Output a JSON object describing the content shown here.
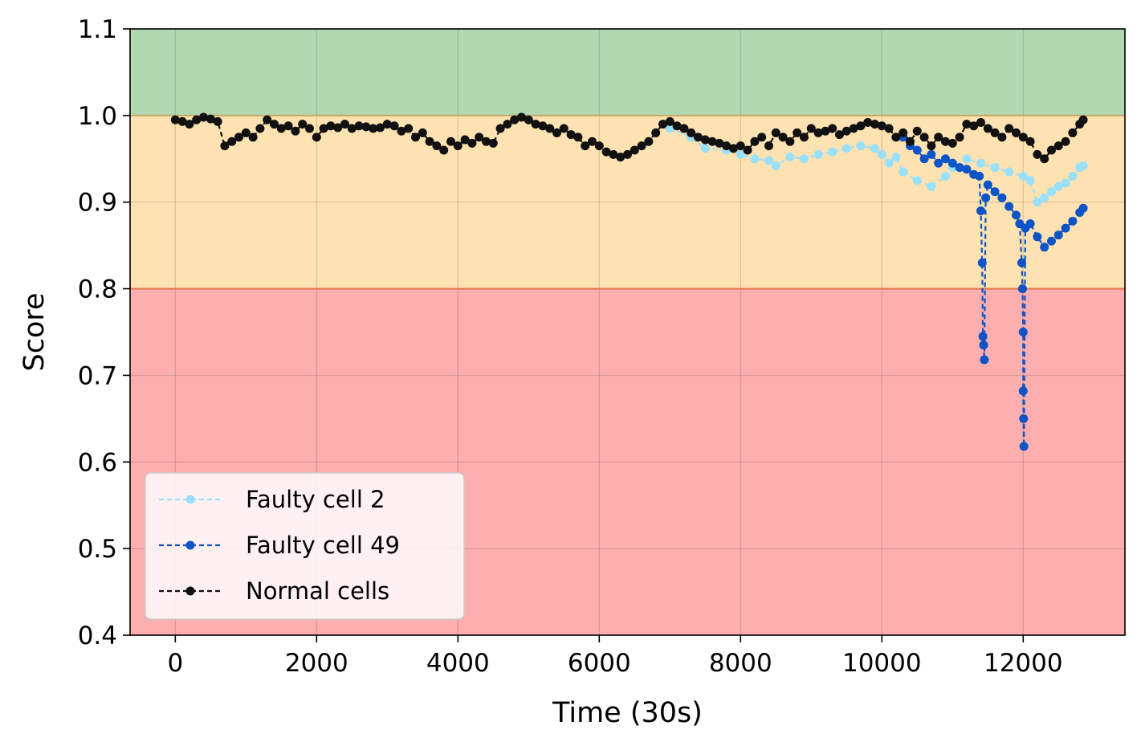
{
  "chart_data": {
    "type": "line",
    "title": "",
    "xlabel": "Time (30s)",
    "ylabel": "Score",
    "xlim": [
      -640,
      13440
    ],
    "ylim": [
      0.4,
      1.1
    ],
    "xticks": [
      0,
      2000,
      4000,
      6000,
      8000,
      10000,
      12000
    ],
    "xtick_labels": [
      "0",
      "2000",
      "4000",
      "6000",
      "8000",
      "10000",
      "12000"
    ],
    "yticks": [
      0.4,
      0.5,
      0.6,
      0.7,
      0.8,
      0.9,
      1.0,
      1.1
    ],
    "ytick_labels": [
      "0.4",
      "0.5",
      "0.6",
      "0.7",
      "0.8",
      "0.9",
      "1.0",
      "1.1"
    ],
    "grid": true,
    "legend_position": "lower-left",
    "bands": [
      {
        "from": 1.0,
        "to": 1.1,
        "color": "#b2d8b2"
      },
      {
        "from": 0.8,
        "to": 1.0,
        "color": "#fee2b1"
      },
      {
        "from": 0.4,
        "to": 0.8,
        "color": "#fdafaf"
      }
    ],
    "threshold_lines": [
      {
        "y": 1.0,
        "color": "#c9a960"
      },
      {
        "y": 0.8,
        "color": "#e8744a"
      }
    ],
    "series": [
      {
        "name": "Faulty cell 2",
        "color": "#99e0fb",
        "points": [
          [
            7000,
            0.985
          ],
          [
            7300,
            0.975
          ],
          [
            7500,
            0.962
          ],
          [
            7800,
            0.96
          ],
          [
            8000,
            0.955
          ],
          [
            8200,
            0.95
          ],
          [
            8400,
            0.948
          ],
          [
            8500,
            0.942
          ],
          [
            8700,
            0.952
          ],
          [
            8900,
            0.95
          ],
          [
            9100,
            0.955
          ],
          [
            9300,
            0.958
          ],
          [
            9500,
            0.962
          ],
          [
            9700,
            0.965
          ],
          [
            9900,
            0.962
          ],
          [
            10000,
            0.955
          ],
          [
            10100,
            0.945
          ],
          [
            10200,
            0.952
          ],
          [
            10300,
            0.935
          ],
          [
            10500,
            0.925
          ],
          [
            10700,
            0.918
          ],
          [
            10900,
            0.93
          ],
          [
            11000,
            0.94
          ],
          [
            11200,
            0.95
          ],
          [
            11400,
            0.945
          ],
          [
            11600,
            0.94
          ],
          [
            11800,
            0.935
          ],
          [
            12000,
            0.93
          ],
          [
            12100,
            0.925
          ],
          [
            12200,
            0.9
          ],
          [
            12300,
            0.905
          ],
          [
            12400,
            0.912
          ],
          [
            12500,
            0.918
          ],
          [
            12600,
            0.922
          ],
          [
            12700,
            0.93
          ],
          [
            12800,
            0.94
          ],
          [
            12850,
            0.942
          ]
        ]
      },
      {
        "name": "Faulty cell 49",
        "color": "#0d54c6",
        "points": [
          [
            10300,
            0.975
          ],
          [
            10400,
            0.965
          ],
          [
            10500,
            0.96
          ],
          [
            10600,
            0.95
          ],
          [
            10700,
            0.955
          ],
          [
            10800,
            0.945
          ],
          [
            10900,
            0.95
          ],
          [
            11000,
            0.945
          ],
          [
            11100,
            0.94
          ],
          [
            11200,
            0.938
          ],
          [
            11300,
            0.932
          ],
          [
            11380,
            0.93
          ],
          [
            11400,
            0.89
          ],
          [
            11420,
            0.83
          ],
          [
            11430,
            0.745
          ],
          [
            11440,
            0.735
          ],
          [
            11450,
            0.718
          ],
          [
            11470,
            0.905
          ],
          [
            11500,
            0.92
          ],
          [
            11600,
            0.912
          ],
          [
            11700,
            0.905
          ],
          [
            11800,
            0.895
          ],
          [
            11900,
            0.885
          ],
          [
            11950,
            0.875
          ],
          [
            11980,
            0.83
          ],
          [
            11990,
            0.8
          ],
          [
            12000,
            0.75
          ],
          [
            12000,
            0.682
          ],
          [
            12005,
            0.65
          ],
          [
            12010,
            0.618
          ],
          [
            12030,
            0.87
          ],
          [
            12100,
            0.875
          ],
          [
            12200,
            0.86
          ],
          [
            12300,
            0.848
          ],
          [
            12400,
            0.855
          ],
          [
            12500,
            0.862
          ],
          [
            12600,
            0.87
          ],
          [
            12700,
            0.878
          ],
          [
            12800,
            0.888
          ],
          [
            12850,
            0.893
          ]
        ]
      },
      {
        "name": "Normal cells",
        "color": "#111111",
        "points": [
          [
            0,
            0.995
          ],
          [
            100,
            0.993
          ],
          [
            200,
            0.99
          ],
          [
            300,
            0.995
          ],
          [
            400,
            0.998
          ],
          [
            500,
            0.996
          ],
          [
            600,
            0.993
          ],
          [
            700,
            0.965
          ],
          [
            800,
            0.97
          ],
          [
            900,
            0.975
          ],
          [
            1000,
            0.98
          ],
          [
            1100,
            0.975
          ],
          [
            1200,
            0.985
          ],
          [
            1300,
            0.995
          ],
          [
            1400,
            0.99
          ],
          [
            1500,
            0.985
          ],
          [
            1600,
            0.988
          ],
          [
            1700,
            0.982
          ],
          [
            1800,
            0.99
          ],
          [
            1900,
            0.985
          ],
          [
            2000,
            0.975
          ],
          [
            2100,
            0.985
          ],
          [
            2200,
            0.988
          ],
          [
            2300,
            0.986
          ],
          [
            2400,
            0.99
          ],
          [
            2500,
            0.985
          ],
          [
            2600,
            0.988
          ],
          [
            2700,
            0.987
          ],
          [
            2800,
            0.985
          ],
          [
            2900,
            0.986
          ],
          [
            3000,
            0.99
          ],
          [
            3100,
            0.988
          ],
          [
            3200,
            0.982
          ],
          [
            3300,
            0.985
          ],
          [
            3400,
            0.975
          ],
          [
            3500,
            0.98
          ],
          [
            3600,
            0.97
          ],
          [
            3700,
            0.965
          ],
          [
            3800,
            0.96
          ],
          [
            3900,
            0.97
          ],
          [
            4000,
            0.965
          ],
          [
            4100,
            0.972
          ],
          [
            4200,
            0.968
          ],
          [
            4300,
            0.975
          ],
          [
            4400,
            0.97
          ],
          [
            4500,
            0.968
          ],
          [
            4600,
            0.985
          ],
          [
            4700,
            0.99
          ],
          [
            4800,
            0.995
          ],
          [
            4900,
            0.998
          ],
          [
            5000,
            0.995
          ],
          [
            5100,
            0.99
          ],
          [
            5200,
            0.988
          ],
          [
            5300,
            0.985
          ],
          [
            5400,
            0.98
          ],
          [
            5500,
            0.985
          ],
          [
            5600,
            0.978
          ],
          [
            5700,
            0.975
          ],
          [
            5800,
            0.965
          ],
          [
            5900,
            0.97
          ],
          [
            6000,
            0.965
          ],
          [
            6100,
            0.958
          ],
          [
            6200,
            0.955
          ],
          [
            6300,
            0.952
          ],
          [
            6400,
            0.955
          ],
          [
            6500,
            0.96
          ],
          [
            6600,
            0.965
          ],
          [
            6700,
            0.97
          ],
          [
            6800,
            0.98
          ],
          [
            6900,
            0.99
          ],
          [
            7000,
            0.993
          ],
          [
            7100,
            0.988
          ],
          [
            7200,
            0.985
          ],
          [
            7300,
            0.98
          ],
          [
            7400,
            0.975
          ],
          [
            7500,
            0.972
          ],
          [
            7600,
            0.97
          ],
          [
            7700,
            0.968
          ],
          [
            7800,
            0.965
          ],
          [
            7900,
            0.962
          ],
          [
            8000,
            0.965
          ],
          [
            8100,
            0.96
          ],
          [
            8200,
            0.97
          ],
          [
            8300,
            0.975
          ],
          [
            8400,
            0.965
          ],
          [
            8500,
            0.98
          ],
          [
            8600,
            0.975
          ],
          [
            8700,
            0.97
          ],
          [
            8800,
            0.98
          ],
          [
            8900,
            0.975
          ],
          [
            9000,
            0.985
          ],
          [
            9100,
            0.98
          ],
          [
            9200,
            0.982
          ],
          [
            9300,
            0.985
          ],
          [
            9400,
            0.978
          ],
          [
            9500,
            0.982
          ],
          [
            9600,
            0.985
          ],
          [
            9700,
            0.988
          ],
          [
            9800,
            0.992
          ],
          [
            9900,
            0.99
          ],
          [
            10000,
            0.988
          ],
          [
            10100,
            0.985
          ],
          [
            10200,
            0.975
          ],
          [
            10300,
            0.98
          ],
          [
            10400,
            0.97
          ],
          [
            10500,
            0.982
          ],
          [
            10600,
            0.975
          ],
          [
            10700,
            0.965
          ],
          [
            10800,
            0.975
          ],
          [
            10900,
            0.97
          ],
          [
            11000,
            0.968
          ],
          [
            11100,
            0.975
          ],
          [
            11200,
            0.99
          ],
          [
            11300,
            0.988
          ],
          [
            11400,
            0.992
          ],
          [
            11500,
            0.985
          ],
          [
            11600,
            0.98
          ],
          [
            11700,
            0.975
          ],
          [
            11800,
            0.985
          ],
          [
            11900,
            0.98
          ],
          [
            12000,
            0.975
          ],
          [
            12100,
            0.97
          ],
          [
            12200,
            0.955
          ],
          [
            12300,
            0.95
          ],
          [
            12400,
            0.96
          ],
          [
            12500,
            0.965
          ],
          [
            12600,
            0.97
          ],
          [
            12700,
            0.98
          ],
          [
            12800,
            0.99
          ],
          [
            12850,
            0.995
          ]
        ]
      }
    ]
  }
}
